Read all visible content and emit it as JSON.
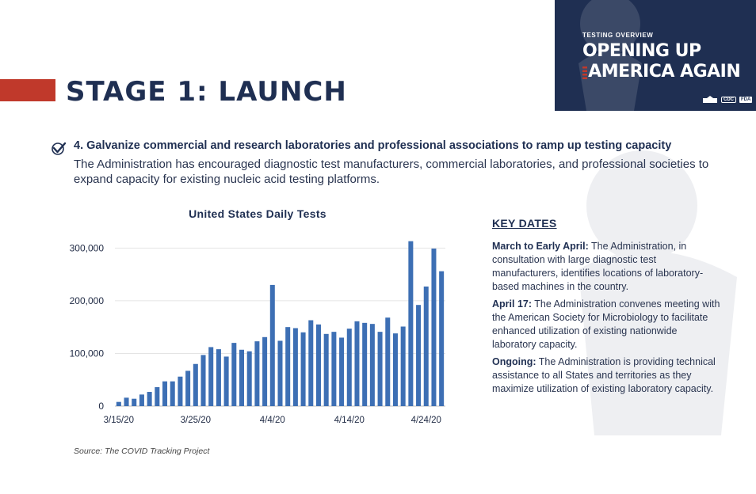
{
  "stage_title": "STAGE 1: LAUNCH",
  "banner": {
    "kicker": "TESTING OVERVIEW",
    "line1": "OPENING UP",
    "line2": "AMERICA AGAIN",
    "logos": [
      "CDC",
      "FDA"
    ]
  },
  "item": {
    "heading": "4. Galvanize commercial and research laboratories and professional associations to ramp up testing capacity",
    "body": "The Administration has encouraged diagnostic test manufacturers, commercial laboratories, and professional societies to expand capacity for existing nucleic acid testing platforms."
  },
  "chart_data": {
    "type": "bar",
    "title": "United States Daily Tests",
    "xlabel": "",
    "ylabel": "",
    "ylim": [
      0,
      320000
    ],
    "yticks": [
      0,
      100000,
      200000,
      300000
    ],
    "ytick_labels": [
      "0",
      "100,000",
      "200,000",
      "300,000"
    ],
    "xtick_labels": [
      "3/15/20",
      "3/25/20",
      "4/4/20",
      "4/14/20",
      "4/24/20"
    ],
    "xtick_categories": [
      "3/15",
      "3/25",
      "4/4",
      "4/14",
      "4/24"
    ],
    "color": "#3d6fb4",
    "grid": true,
    "categories": [
      "3/15",
      "3/16",
      "3/17",
      "3/18",
      "3/19",
      "3/20",
      "3/21",
      "3/22",
      "3/23",
      "3/24",
      "3/25",
      "3/26",
      "3/27",
      "3/28",
      "3/29",
      "3/30",
      "3/31",
      "4/1",
      "4/2",
      "4/3",
      "4/4",
      "4/5",
      "4/6",
      "4/7",
      "4/8",
      "4/9",
      "4/10",
      "4/11",
      "4/12",
      "4/13",
      "4/14",
      "4/15",
      "4/16",
      "4/17",
      "4/18",
      "4/19",
      "4/20",
      "4/21",
      "4/22",
      "4/23",
      "4/24",
      "4/25",
      "4/26"
    ],
    "values": [
      8000,
      16000,
      14000,
      22000,
      27000,
      36000,
      47000,
      47000,
      56000,
      67000,
      80000,
      97000,
      112000,
      108000,
      94000,
      120000,
      107000,
      104000,
      123000,
      131000,
      230000,
      124000,
      150000,
      148000,
      140000,
      163000,
      155000,
      137000,
      141000,
      130000,
      147000,
      161000,
      158000,
      156000,
      141000,
      168000,
      138000,
      151000,
      313000,
      192000,
      227000,
      299000,
      256000
    ]
  },
  "source": "Source: The COVID Tracking Project",
  "key_dates": {
    "heading": "KEY DATES",
    "entries": [
      {
        "label": "March to Early April:",
        "text": " The Administration, in consultation with large diagnostic test manufacturers, identifies locations of laboratory-based machines in the country."
      },
      {
        "label": "April 17:",
        "text": " The Administration convenes meeting with the American Society for Microbiology to facilitate enhanced utilization of existing nationwide laboratory capacity."
      },
      {
        "label": "Ongoing:",
        "text": " The Administration is providing technical assistance to all States and territories as they maximize utilization of existing laboratory capacity."
      }
    ]
  }
}
